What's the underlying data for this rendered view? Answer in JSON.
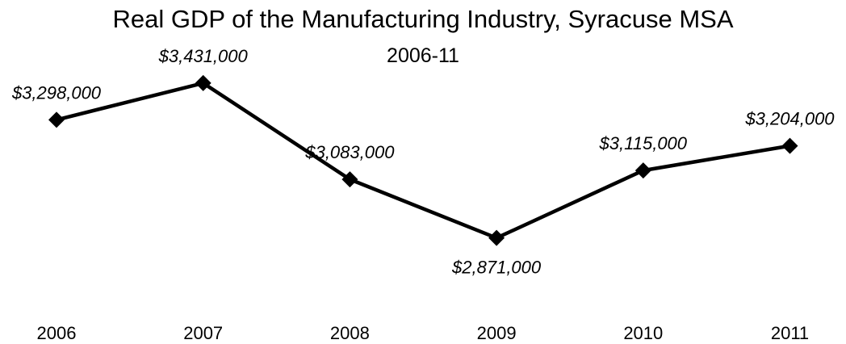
{
  "chart_data": {
    "type": "line",
    "title": "Real GDP of the Manufacturing Industry, Syracuse MSA",
    "subtitle": "2006-11",
    "xlabel": "",
    "ylabel": "",
    "categories": [
      "2006",
      "2007",
      "2008",
      "2009",
      "2010",
      "2011"
    ],
    "series": [
      {
        "values": [
          3298000,
          3431000,
          3083000,
          2871000,
          3115000,
          3204000
        ],
        "data_labels": [
          "$3,298,000",
          "$3,431,000",
          "$3,083,000",
          "$2,871,000",
          "$3,115,000",
          "$3,204,000"
        ],
        "data_label_positions": [
          "above",
          "above",
          "above",
          "below",
          "above",
          "above"
        ]
      }
    ],
    "ylim": [
      2400000,
      3600000
    ],
    "grid": false,
    "legend": "none",
    "marker": "diamond",
    "colors": {
      "line": "#000000",
      "marker": "#000000",
      "text": "#000000",
      "background": "#ffffff"
    }
  }
}
